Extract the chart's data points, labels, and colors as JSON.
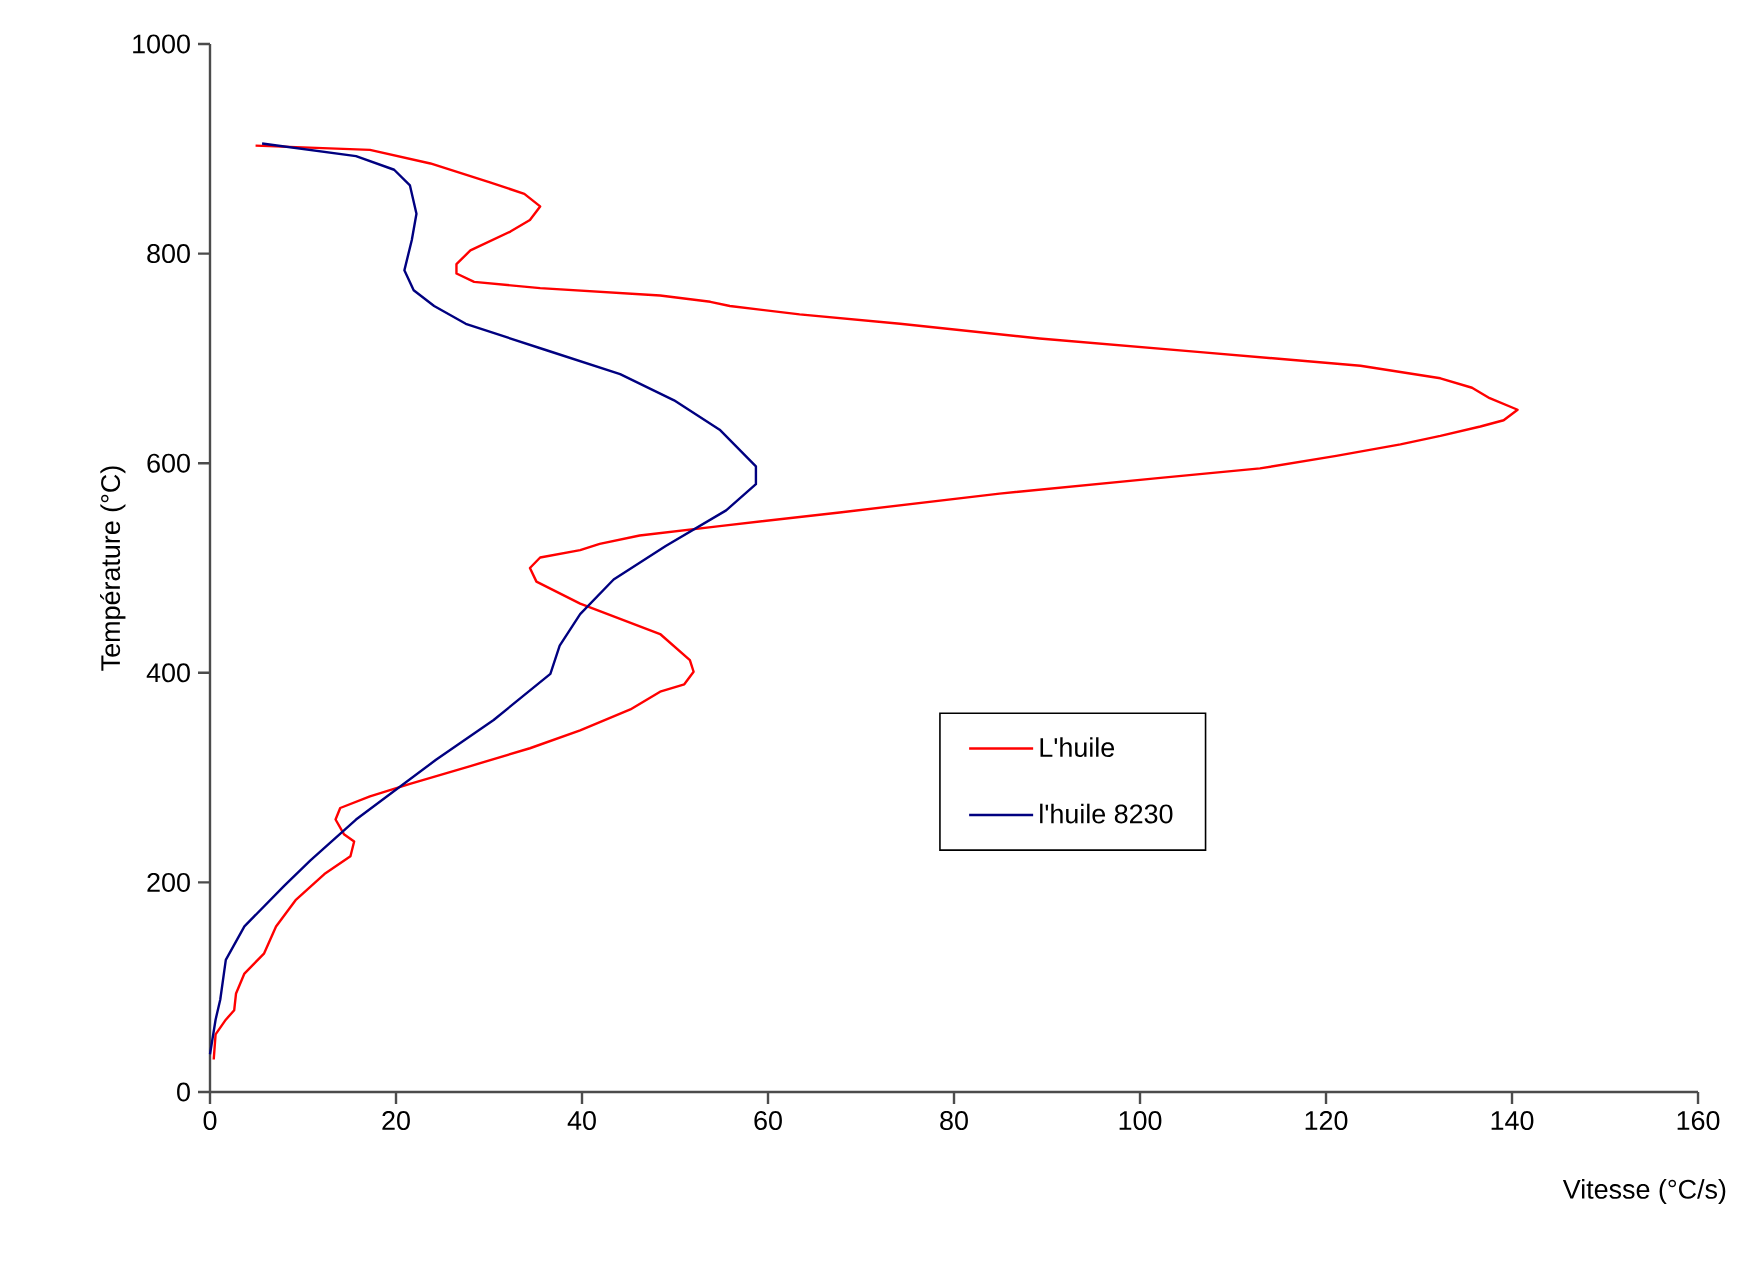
{
  "chart_data": {
    "type": "line",
    "xlabel": "Vitesse (°C/s)",
    "ylabel": "Température (°C)",
    "xlim": [
      0,
      160
    ],
    "xticks": [
      0,
      20,
      40,
      60,
      80,
      100,
      120,
      140,
      160
    ],
    "ylim": [
      0,
      1000
    ],
    "yticks": [
      0,
      200,
      400,
      600,
      800,
      1000
    ],
    "grid": false,
    "legend": "right",
    "marker": "none",
    "line_style": "solid",
    "series": [
      {
        "name": "L'huile",
        "color": "#ff0000",
        "x": [
          4.9,
          17.2,
          23.7,
          30.1,
          33.8,
          35.5,
          34.4,
          32.3,
          28.0,
          26.5,
          26.5,
          28.4,
          35.5,
          48.4,
          53.8,
          55.9,
          63.4,
          74.2,
          89.2,
          106.5,
          123.7,
          132.3,
          135.7,
          137.6,
          140.6,
          139.1,
          136.6,
          132.3,
          128.0,
          121.1,
          112.9,
          102.2,
          84.9,
          67.7,
          54.8,
          46.2,
          41.9,
          39.8,
          35.5,
          34.4,
          35.1,
          39.8,
          48.4,
          51.6,
          52.0,
          51.0,
          48.4,
          45.2,
          39.8,
          34.4,
          28.0,
          21.5,
          17.2,
          14.0,
          13.5,
          14.4,
          15.5,
          15.1,
          12.3,
          9.2,
          7.1,
          5.8,
          3.7,
          2.8,
          2.6,
          1.7,
          0.6,
          0.4
        ],
        "values": [
          903,
          899,
          886,
          868,
          857,
          845,
          832,
          821,
          803,
          790,
          781,
          773,
          767,
          760,
          754,
          750,
          742,
          733,
          719,
          706,
          693,
          681,
          672,
          662,
          651,
          641,
          635,
          626,
          618,
          607,
          595,
          586,
          571,
          553,
          540,
          531,
          523,
          517,
          510,
          500,
          487,
          466,
          437,
          412,
          401,
          389,
          382,
          365,
          345,
          328,
          311,
          294,
          282,
          271,
          260,
          246,
          239,
          225,
          208,
          183,
          158,
          132,
          113,
          94,
          78,
          69,
          55,
          31
        ]
      },
      {
        "name": "l'huile 8230",
        "color": "#000080",
        "x": [
          5.6,
          15.7,
          19.8,
          21.5,
          22.2,
          21.7,
          20.9,
          21.9,
          24.1,
          27.5,
          36.1,
          44.1,
          49.9,
          54.8,
          58.7,
          58.7,
          55.5,
          49.0,
          43.4,
          39.8,
          37.6,
          36.6,
          30.5,
          24.3,
          15.7,
          10.8,
          8.0,
          3.7,
          1.7,
          1.1,
          0.6,
          0.0
        ],
        "values": [
          905,
          893,
          880,
          865,
          838,
          813,
          784,
          765,
          750,
          733,
          708,
          685,
          660,
          632,
          597,
          580,
          555,
          521,
          489,
          456,
          426,
          399,
          355,
          317,
          260,
          221,
          197,
          158,
          126,
          88,
          69,
          36
        ]
      }
    ]
  }
}
